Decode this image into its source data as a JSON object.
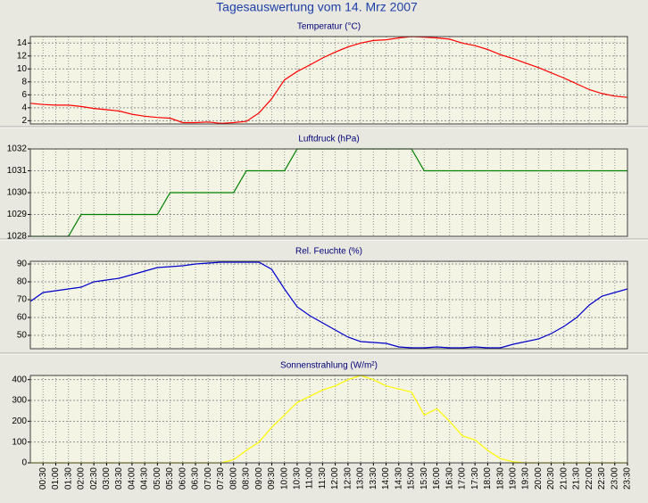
{
  "title": "Tagesauswertung vom 14. Mrz 2007",
  "chart_data": [
    {
      "type": "line",
      "title": "Temperatur (°C)",
      "color": "#ff0000",
      "ylim": [
        1.5,
        15
      ],
      "yticks": [
        2,
        4,
        6,
        8,
        10,
        12,
        14
      ],
      "grid": true,
      "values": [
        4.7,
        4.5,
        4.4,
        4.4,
        4.2,
        3.9,
        3.7,
        3.5,
        3.0,
        2.7,
        2.5,
        2.4,
        1.7,
        1.7,
        1.8,
        1.6,
        1.7,
        1.9,
        3.2,
        5.4,
        8.3,
        9.6,
        10.6,
        11.7,
        12.6,
        13.4,
        14.0,
        14.4,
        14.5,
        14.8,
        15.0,
        14.9,
        14.8,
        14.6,
        14.0,
        13.6,
        13.0,
        12.2,
        11.6,
        10.9,
        10.2,
        9.4,
        8.6,
        7.7,
        6.8,
        6.2,
        5.8,
        5.6
      ]
    },
    {
      "type": "line",
      "title": "Luftdruck (hPa)",
      "color": "#008000",
      "ylim": [
        1028,
        1032
      ],
      "yticks": [
        1028,
        1029,
        1030,
        1031,
        1032
      ],
      "grid": true,
      "values": [
        1028,
        1028,
        1028,
        1028,
        1029,
        1029,
        1029,
        1029,
        1029,
        1029,
        1029,
        1030,
        1030,
        1030,
        1030,
        1030,
        1030,
        1031,
        1031,
        1031,
        1031,
        1032,
        1032,
        1032,
        1032,
        1032,
        1032,
        1032,
        1032,
        1032,
        1032,
        1031,
        1031,
        1031,
        1031,
        1031,
        1031,
        1031,
        1031,
        1031,
        1031,
        1031,
        1031,
        1031,
        1031,
        1031,
        1031,
        1031
      ]
    },
    {
      "type": "line",
      "title": "Rel. Feuchte (%)",
      "color": "#0000cc",
      "ylim": [
        42.5,
        91.5
      ],
      "yticks": [
        50,
        60,
        70,
        80,
        90
      ],
      "grid": true,
      "values": [
        69,
        74,
        75,
        76,
        77,
        80,
        81,
        82,
        84,
        86,
        88,
        88.5,
        89,
        90,
        90.5,
        91,
        91,
        91,
        91,
        87,
        76,
        66,
        61,
        57,
        53,
        49,
        46.5,
        46,
        45.5,
        43.5,
        43,
        43,
        43.5,
        43,
        43,
        43.5,
        43,
        43,
        45,
        46.5,
        48,
        51,
        55,
        60,
        67,
        72,
        74,
        76
      ]
    },
    {
      "type": "line",
      "title": "Sonnenstrahlung (W/m²)",
      "color": "#ffff00",
      "ylim": [
        0,
        420
      ],
      "yticks": [
        0,
        100,
        200,
        300,
        400
      ],
      "grid": true,
      "values": [
        0,
        0,
        0,
        0,
        0,
        0,
        0,
        0,
        0,
        0,
        0,
        0,
        0,
        0,
        0,
        0,
        15,
        60,
        100,
        170,
        230,
        290,
        320,
        350,
        370,
        400,
        420,
        400,
        370,
        355,
        340,
        230,
        260,
        200,
        130,
        110,
        60,
        20,
        5,
        0,
        0,
        0,
        0,
        0,
        0,
        0,
        0,
        0
      ],
      "categories": [
        null,
        "00:30",
        "01:00",
        "01:30",
        "02:00",
        "02:30",
        "03:00",
        "03:30",
        "04:00",
        "04:30",
        "05:00",
        "05:30",
        "06:00",
        "06:30",
        "07:00",
        "07:30",
        "08:00",
        "08:30",
        "09:00",
        "09:30",
        "10:00",
        "10:30",
        "11:00",
        "11:30",
        "12:00",
        "12:30",
        "13:00",
        "13:30",
        "14:00",
        "14:30",
        "15:00",
        "15:30",
        "16:00",
        "16:30",
        "17:00",
        "17:30",
        "18:00",
        "18:30",
        "19:00",
        "19:30",
        "20:00",
        "20:30",
        "21:00",
        "21:30",
        "22:00",
        "22:30",
        "23:00",
        "23:30"
      ]
    }
  ]
}
